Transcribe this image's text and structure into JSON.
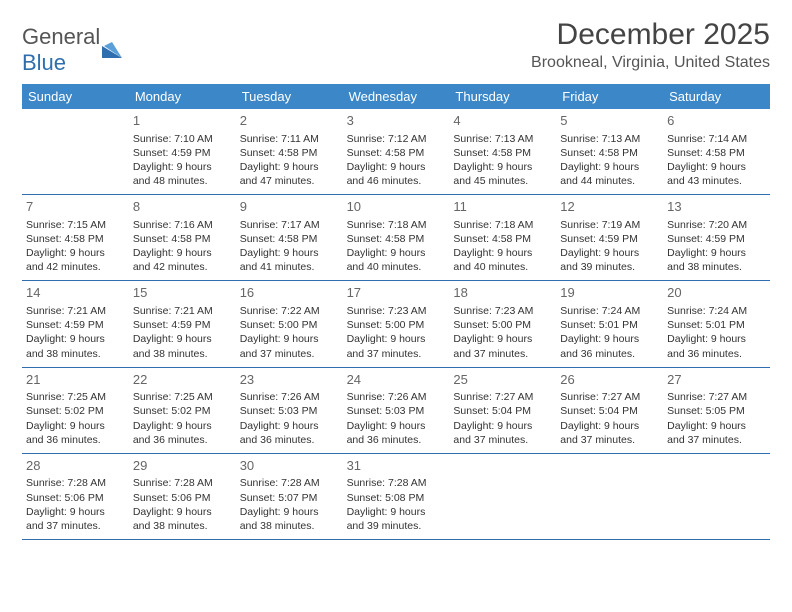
{
  "logo": {
    "word1": "General",
    "word2": "Blue"
  },
  "title": "December 2025",
  "location": "Brookneal, Virginia, United States",
  "colors": {
    "header_bg": "#3b87c8",
    "border": "#2f6fb0",
    "logo_blue": "#2f6fb0"
  },
  "weekdays": [
    "Sunday",
    "Monday",
    "Tuesday",
    "Wednesday",
    "Thursday",
    "Friday",
    "Saturday"
  ],
  "first_weekday_index": 1,
  "days": [
    {
      "n": 1,
      "sr": "7:10 AM",
      "ss": "4:59 PM",
      "dl": "9 hours and 48 minutes."
    },
    {
      "n": 2,
      "sr": "7:11 AM",
      "ss": "4:58 PM",
      "dl": "9 hours and 47 minutes."
    },
    {
      "n": 3,
      "sr": "7:12 AM",
      "ss": "4:58 PM",
      "dl": "9 hours and 46 minutes."
    },
    {
      "n": 4,
      "sr": "7:13 AM",
      "ss": "4:58 PM",
      "dl": "9 hours and 45 minutes."
    },
    {
      "n": 5,
      "sr": "7:13 AM",
      "ss": "4:58 PM",
      "dl": "9 hours and 44 minutes."
    },
    {
      "n": 6,
      "sr": "7:14 AM",
      "ss": "4:58 PM",
      "dl": "9 hours and 43 minutes."
    },
    {
      "n": 7,
      "sr": "7:15 AM",
      "ss": "4:58 PM",
      "dl": "9 hours and 42 minutes."
    },
    {
      "n": 8,
      "sr": "7:16 AM",
      "ss": "4:58 PM",
      "dl": "9 hours and 42 minutes."
    },
    {
      "n": 9,
      "sr": "7:17 AM",
      "ss": "4:58 PM",
      "dl": "9 hours and 41 minutes."
    },
    {
      "n": 10,
      "sr": "7:18 AM",
      "ss": "4:58 PM",
      "dl": "9 hours and 40 minutes."
    },
    {
      "n": 11,
      "sr": "7:18 AM",
      "ss": "4:58 PM",
      "dl": "9 hours and 40 minutes."
    },
    {
      "n": 12,
      "sr": "7:19 AM",
      "ss": "4:59 PM",
      "dl": "9 hours and 39 minutes."
    },
    {
      "n": 13,
      "sr": "7:20 AM",
      "ss": "4:59 PM",
      "dl": "9 hours and 38 minutes."
    },
    {
      "n": 14,
      "sr": "7:21 AM",
      "ss": "4:59 PM",
      "dl": "9 hours and 38 minutes."
    },
    {
      "n": 15,
      "sr": "7:21 AM",
      "ss": "4:59 PM",
      "dl": "9 hours and 38 minutes."
    },
    {
      "n": 16,
      "sr": "7:22 AM",
      "ss": "5:00 PM",
      "dl": "9 hours and 37 minutes."
    },
    {
      "n": 17,
      "sr": "7:23 AM",
      "ss": "5:00 PM",
      "dl": "9 hours and 37 minutes."
    },
    {
      "n": 18,
      "sr": "7:23 AM",
      "ss": "5:00 PM",
      "dl": "9 hours and 37 minutes."
    },
    {
      "n": 19,
      "sr": "7:24 AM",
      "ss": "5:01 PM",
      "dl": "9 hours and 36 minutes."
    },
    {
      "n": 20,
      "sr": "7:24 AM",
      "ss": "5:01 PM",
      "dl": "9 hours and 36 minutes."
    },
    {
      "n": 21,
      "sr": "7:25 AM",
      "ss": "5:02 PM",
      "dl": "9 hours and 36 minutes."
    },
    {
      "n": 22,
      "sr": "7:25 AM",
      "ss": "5:02 PM",
      "dl": "9 hours and 36 minutes."
    },
    {
      "n": 23,
      "sr": "7:26 AM",
      "ss": "5:03 PM",
      "dl": "9 hours and 36 minutes."
    },
    {
      "n": 24,
      "sr": "7:26 AM",
      "ss": "5:03 PM",
      "dl": "9 hours and 36 minutes."
    },
    {
      "n": 25,
      "sr": "7:27 AM",
      "ss": "5:04 PM",
      "dl": "9 hours and 37 minutes."
    },
    {
      "n": 26,
      "sr": "7:27 AM",
      "ss": "5:04 PM",
      "dl": "9 hours and 37 minutes."
    },
    {
      "n": 27,
      "sr": "7:27 AM",
      "ss": "5:05 PM",
      "dl": "9 hours and 37 minutes."
    },
    {
      "n": 28,
      "sr": "7:28 AM",
      "ss": "5:06 PM",
      "dl": "9 hours and 37 minutes."
    },
    {
      "n": 29,
      "sr": "7:28 AM",
      "ss": "5:06 PM",
      "dl": "9 hours and 38 minutes."
    },
    {
      "n": 30,
      "sr": "7:28 AM",
      "ss": "5:07 PM",
      "dl": "9 hours and 38 minutes."
    },
    {
      "n": 31,
      "sr": "7:28 AM",
      "ss": "5:08 PM",
      "dl": "9 hours and 39 minutes."
    }
  ],
  "labels": {
    "sunrise": "Sunrise:",
    "sunset": "Sunset:",
    "daylight": "Daylight:"
  }
}
